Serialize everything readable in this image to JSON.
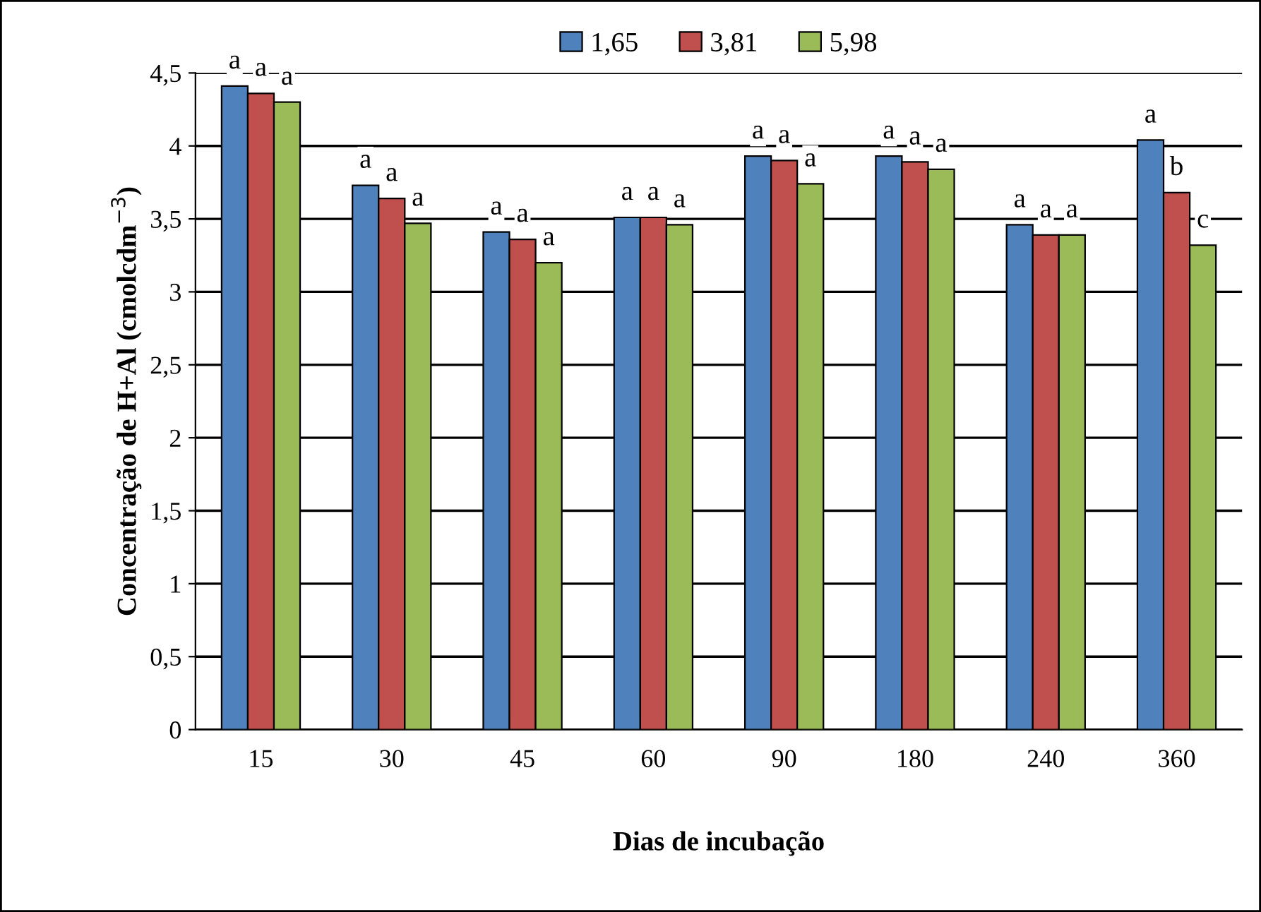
{
  "chart_data": {
    "type": "bar",
    "xlabel": "Dias de incubação",
    "ylabel": "Concentração de H+Al (cmolcdm$^{−3}$)",
    "categories": [
      "15",
      "30",
      "45",
      "60",
      "90",
      "180",
      "240",
      "360"
    ],
    "series": [
      {
        "name": "1,65",
        "color": "#4f81bd",
        "values": [
          4.41,
          3.73,
          3.41,
          3.51,
          3.93,
          3.93,
          3.46,
          4.04
        ]
      },
      {
        "name": "3,81",
        "color": "#c0504d",
        "values": [
          4.36,
          3.64,
          3.36,
          3.51,
          3.9,
          3.89,
          3.39,
          3.68
        ]
      },
      {
        "name": "5,98",
        "color": "#9bbb59",
        "values": [
          4.3,
          3.47,
          3.2,
          3.46,
          3.74,
          3.84,
          3.39,
          3.32
        ]
      }
    ],
    "ylim": [
      0,
      4.5
    ],
    "yticks": [
      0,
      {
        "value": 0.5,
        "label": "0,5"
      },
      1,
      {
        "value": 1.5,
        "label": "1,5"
      },
      2,
      {
        "value": 2.5,
        "label": "2,5"
      },
      3,
      {
        "value": 3.5,
        "label": "3,5"
      },
      4,
      {
        "value": 4.5,
        "label": "4,5"
      }
    ],
    "grid": "y",
    "legend": "top",
    "annotations": [
      "a",
      "a",
      "a",
      "a",
      "a",
      "a",
      "a",
      "a",
      "a",
      "a",
      "a",
      "a",
      "a",
      "a",
      "a",
      "a",
      "a",
      "a",
      "a",
      "a",
      "a",
      "a",
      "b",
      "c"
    ]
  }
}
